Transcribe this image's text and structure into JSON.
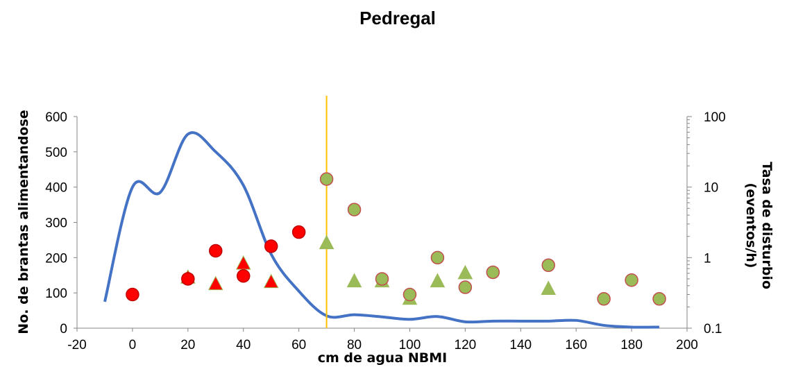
{
  "chart_data": {
    "type": "scatter",
    "title": "Pedregal",
    "xlabel": "cm de agua NBMI",
    "ylabel": "No. de brantas alimentandose",
    "ylabel_right": [
      "Tasa de disturbio",
      "(eventos/h)"
    ],
    "xlim": [
      -20,
      200
    ],
    "xticks": [
      -20,
      0,
      20,
      40,
      60,
      80,
      100,
      120,
      140,
      160,
      180,
      200
    ],
    "ylim": [
      0,
      600
    ],
    "yticks": [
      0,
      100,
      200,
      300,
      400,
      500,
      600
    ],
    "y2_scale": "log",
    "y2lim": [
      0.1,
      100
    ],
    "y2ticks": [
      0.1,
      1,
      10,
      100
    ],
    "grid": false,
    "colors": {
      "line": "#4472C4",
      "red_marker": "#FF0000",
      "red_edge": "#C00000",
      "green_marker": "#9BBB59",
      "green_edge": "#C0504D",
      "vline": "#FFC000"
    },
    "vline_x": 70,
    "line_series": {
      "axis": "left",
      "x": [
        -10,
        0,
        10,
        20,
        30,
        40,
        50,
        60,
        70,
        80,
        90,
        100,
        110,
        120,
        130,
        140,
        150,
        160,
        170,
        180,
        190
      ],
      "y": [
        75,
        400,
        385,
        550,
        500,
        405,
        210,
        105,
        35,
        38,
        32,
        25,
        33,
        18,
        20,
        20,
        20,
        22,
        8,
        3,
        3
      ]
    },
    "red_circles": {
      "axis": "right",
      "x": [
        0,
        20,
        30,
        40,
        50,
        60
      ],
      "y": [
        0.3,
        0.5,
        1.25,
        0.55,
        1.45,
        2.3
      ]
    },
    "red_triangles": {
      "axis": "right",
      "x": [
        20,
        30,
        40,
        50
      ],
      "y": [
        0.52,
        0.42,
        0.82,
        0.45
      ]
    },
    "green_circles": {
      "axis": "right",
      "x": [
        70,
        80,
        90,
        100,
        110,
        120,
        130,
        150,
        170,
        180,
        190
      ],
      "y": [
        13,
        4.8,
        0.5,
        0.3,
        1.0,
        0.38,
        0.62,
        0.78,
        0.26,
        0.48,
        0.26
      ]
    },
    "green_triangles": {
      "axis": "right",
      "x": [
        70,
        80,
        90,
        100,
        110,
        120,
        150
      ],
      "y": [
        1.6,
        0.46,
        0.46,
        0.26,
        0.46,
        0.6,
        0.36
      ]
    }
  }
}
